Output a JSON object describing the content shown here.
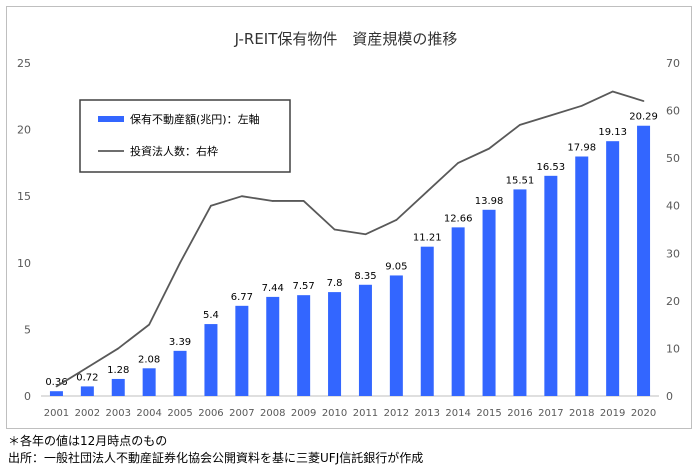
{
  "chart_data": {
    "type": "bar",
    "title": "J-REIT保有物件　資産規模の推移",
    "categories": [
      "2001",
      "2002",
      "2003",
      "2004",
      "2005",
      "2006",
      "2007",
      "2008",
      "2009",
      "2010",
      "2011",
      "2012",
      "2013",
      "2014",
      "2015",
      "2016",
      "2017",
      "2018",
      "2019",
      "2020"
    ],
    "series": [
      {
        "name": "保有不動産額(兆円)：左軸",
        "type": "bar",
        "axis": "left",
        "color": "#3366ff",
        "values": [
          0.36,
          0.72,
          1.28,
          2.08,
          3.39,
          5.4,
          6.77,
          7.44,
          7.57,
          7.8,
          8.35,
          9.05,
          11.21,
          12.66,
          13.98,
          15.51,
          16.53,
          17.98,
          19.13,
          20.29
        ],
        "labels": [
          "0.36",
          "0.72",
          "1.28",
          "2.08",
          "3.39",
          "5.4",
          "6.77",
          "7.44",
          "7.57",
          "7.8",
          "8.35",
          "9.05",
          "11.21",
          "12.66",
          "13.98",
          "15.51",
          "16.53",
          "17.98",
          "19.13",
          "20.29"
        ]
      },
      {
        "name": "投資法人数：右枠",
        "type": "line",
        "axis": "right",
        "color": "#595959",
        "values": [
          2,
          6,
          10,
          15,
          28,
          40,
          42,
          41,
          41,
          35,
          34,
          37,
          43,
          49,
          52,
          57,
          59,
          61,
          64,
          62
        ]
      }
    ],
    "y_left": {
      "range": [
        0,
        25
      ],
      "ticks": [
        "0",
        "5",
        "10",
        "15",
        "20",
        "25"
      ]
    },
    "y_right": {
      "range": [
        0,
        70
      ],
      "ticks": [
        "0",
        "10",
        "20",
        "30",
        "40",
        "50",
        "60",
        "70"
      ]
    },
    "grid": false,
    "legend_position": "top-left"
  },
  "notes": [
    "＊各年の値は12月時点のもの",
    "出所：一般社団法人不動産証券化協会公開資料を基に三菱UFJ信託銀行が作成"
  ]
}
